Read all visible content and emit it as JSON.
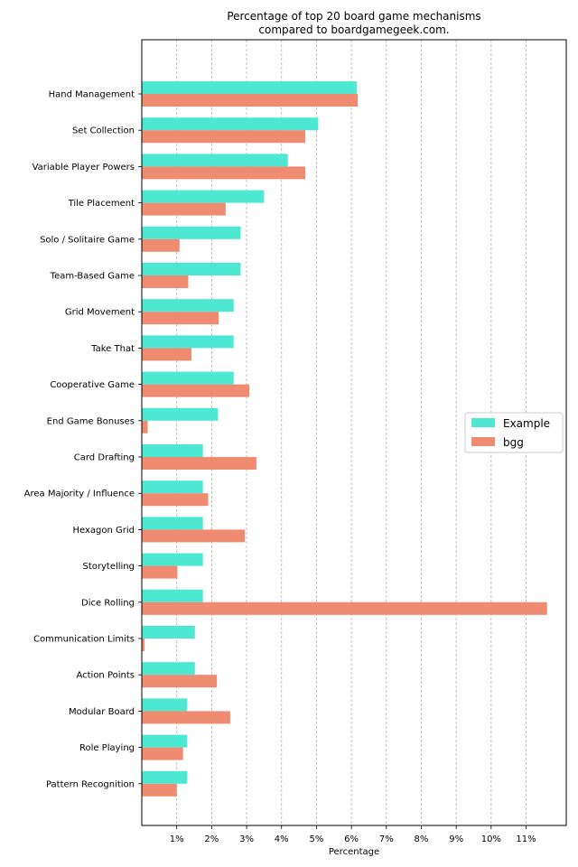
{
  "chart_data": {
    "type": "bar",
    "orientation": "horizontal",
    "title_lines": [
      "Percentage of top 20 board game mechanisms",
      "compared to boardgamegeek.com."
    ],
    "xlabel": "Percentage",
    "ylabel": "",
    "xlim": [
      0,
      12.15
    ],
    "xticks": [
      1,
      2,
      3,
      4,
      5,
      6,
      7,
      8,
      9,
      10,
      11
    ],
    "xtick_labels": [
      "1%",
      "2%",
      "3%",
      "4%",
      "5%",
      "6%",
      "7%",
      "8%",
      "9%",
      "10%",
      "11%"
    ],
    "grid": "vertical dashed",
    "legend_position": "center-right",
    "categories": [
      "Hand Management",
      "Set Collection",
      "Variable Player Powers",
      "Tile Placement",
      "Solo / Solitaire Game",
      "Team-Based Game",
      "Grid Movement",
      "Take That",
      "Cooperative Game",
      "End Game Bonuses",
      "Card Drafting",
      "Area Majority / Influence",
      "Hexagon Grid",
      "Storytelling",
      "Dice Rolling",
      "Communication Limits",
      "Action Points",
      "Modular Board",
      "Role Playing",
      "Pattern Recognition"
    ],
    "series": [
      {
        "name": "Example",
        "color": "#4ce8d2",
        "values": [
          6.15,
          5.05,
          4.18,
          3.5,
          2.83,
          2.83,
          2.63,
          2.63,
          2.63,
          2.18,
          1.75,
          1.75,
          1.75,
          1.75,
          1.75,
          1.52,
          1.52,
          1.3,
          1.3,
          1.3
        ]
      },
      {
        "name": "bgg",
        "color": "#ef8b70",
        "values": [
          6.18,
          4.68,
          4.68,
          2.4,
          1.08,
          1.33,
          2.2,
          1.42,
          3.08,
          0.17,
          3.28,
          1.9,
          2.95,
          1.02,
          11.6,
          0.08,
          2.15,
          2.53,
          1.18,
          1.0
        ]
      }
    ]
  }
}
